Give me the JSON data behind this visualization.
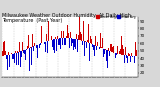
{
  "title": "Milwaukee Weather Outdoor Humidity At Daily High Temperature (Past Year)",
  "background_color": "#d8d8d8",
  "plot_bg_color": "#ffffff",
  "bar_color_above": "#cc0000",
  "bar_color_below": "#0000cc",
  "legend_label_above": "Above Avg",
  "legend_label_below": "Below Avg",
  "legend_color_above": "#cc0000",
  "legend_color_below": "#0000cc",
  "ylim": [
    15,
    95
  ],
  "yticks": [
    20,
    30,
    40,
    50,
    60,
    70,
    80,
    90
  ],
  "num_bars": 365,
  "seed": 42,
  "grid_color": "#aaaaaa",
  "tick_fontsize": 3.0,
  "title_fontsize": 3.5,
  "avg_humidity": 55
}
